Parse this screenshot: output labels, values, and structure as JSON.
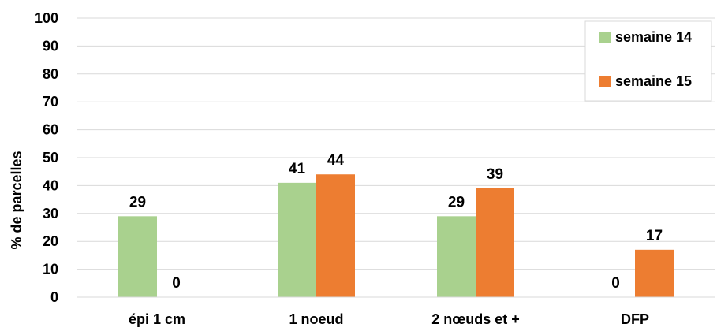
{
  "chart_data": {
    "type": "bar",
    "categories": [
      "épi 1 cm",
      "1 noeud",
      "2 nœuds et +",
      "DFP"
    ],
    "series": [
      {
        "name": "semaine 14",
        "values": [
          29,
          41,
          29,
          0
        ],
        "color": "#A9D18E"
      },
      {
        "name": "semaine 15",
        "values": [
          0,
          44,
          39,
          17
        ],
        "color": "#ED7D31"
      }
    ],
    "data_labels": [
      [
        "29",
        "41",
        "29",
        "0"
      ],
      [
        "0",
        "44",
        "39",
        "17"
      ]
    ],
    "title": "",
    "xlabel": "",
    "ylabel": "% de parcelles",
    "ylim": [
      0,
      100
    ],
    "yticks": [
      "0",
      "10",
      "20",
      "30",
      "40",
      "50",
      "60",
      "70",
      "80",
      "90",
      "100"
    ],
    "grid": "horizontal",
    "legend_position": "top-right"
  }
}
